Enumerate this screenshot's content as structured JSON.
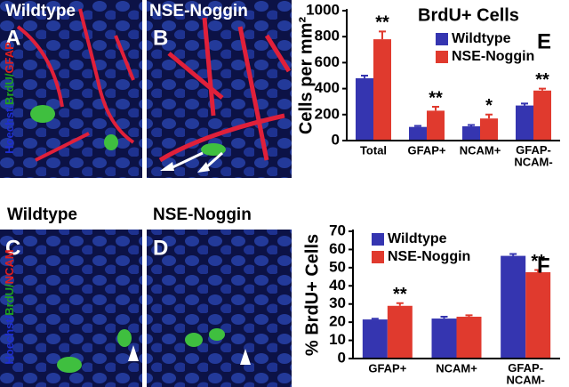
{
  "image_panels": [
    {
      "letter": "A",
      "label": "Wildtype"
    },
    {
      "letter": "B",
      "label": "NSE-Noggin"
    },
    {
      "letter": "C",
      "label": "Wildtype"
    },
    {
      "letter": "D",
      "label": "NSE-Noggin"
    }
  ],
  "stain_labels": [
    [
      {
        "text": "Hoechst/",
        "color": "#1e2fd0"
      },
      {
        "text": "BrdU/",
        "color": "#1fa21f"
      },
      {
        "text": "GFAP",
        "color": "#e01e1e"
      }
    ],
    [
      {
        "text": "Hoechst/",
        "color": "#1e2fd0"
      },
      {
        "text": "BrdU/",
        "color": "#1fa21f"
      },
      {
        "text": "NCAM",
        "color": "#e01e1e"
      }
    ]
  ],
  "chart_data": [
    {
      "type": "bar",
      "letter": "E",
      "title": "BrdU+ Cells",
      "y_label": "Cells per mm²",
      "categories": [
        "Total",
        "GFAP+",
        "NCAM+",
        "GFAP-\nNCAM-"
      ],
      "series": [
        {
          "name": "Wildtype",
          "color": "#3535b0",
          "values": [
            480,
            105,
            110,
            270
          ],
          "errors": [
            20,
            8,
            10,
            15
          ]
        },
        {
          "name": "NSE-Noggin",
          "color": "#e03a2e",
          "values": [
            780,
            230,
            170,
            385
          ],
          "errors": [
            60,
            30,
            30,
            15
          ],
          "significance": [
            "**",
            "**",
            "*",
            "**"
          ]
        }
      ],
      "ylim": [
        0,
        1000
      ],
      "yticks": [
        0,
        200,
        400,
        600,
        800,
        1000
      ],
      "legend": "upper center"
    },
    {
      "type": "bar",
      "letter": "F",
      "y_label": "% BrdU+ Cells",
      "categories": [
        "GFAP+",
        "NCAM+",
        "GFAP-\nNCAM-"
      ],
      "series": [
        {
          "name": "Wildtype",
          "color": "#3535b0",
          "values": [
            21.5,
            22,
            56.5
          ],
          "errors": [
            0.4,
            1,
            1
          ]
        },
        {
          "name": "NSE-Noggin",
          "color": "#e03a2e",
          "values": [
            29,
            23,
            47.5
          ],
          "errors": [
            1.5,
            0.8,
            1.2
          ],
          "significance": [
            "**",
            null,
            "**"
          ]
        }
      ],
      "ylim": [
        0,
        70
      ],
      "yticks": [
        0,
        10,
        20,
        30,
        40,
        50,
        60,
        70
      ],
      "legend": "upper left"
    }
  ]
}
